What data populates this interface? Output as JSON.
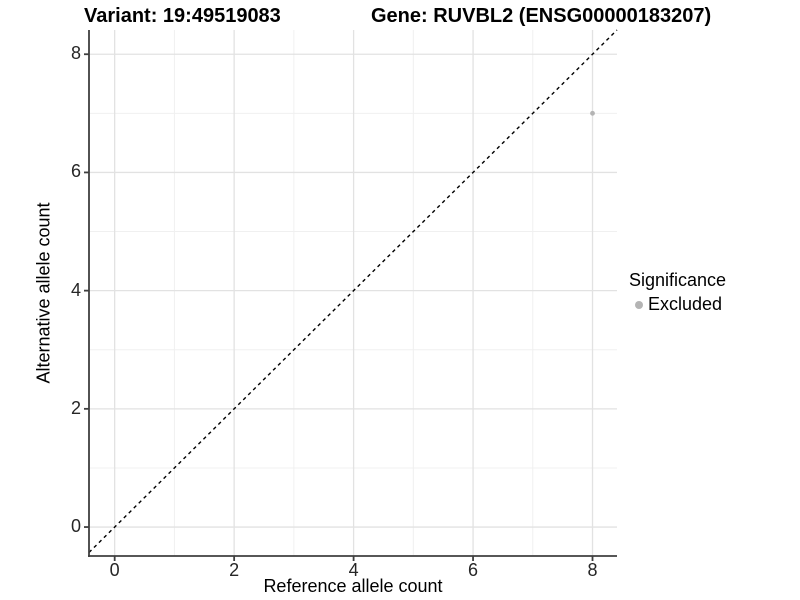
{
  "chart_data": {
    "type": "scatter",
    "title_left": "Variant: 19:49519083",
    "title_right": "Gene: RUVBL2 (ENSG00000183207)",
    "xlabel": "Reference allele count",
    "ylabel": "Alternative allele count",
    "xlim": [
      -0.43,
      8.41
    ],
    "ylim": [
      -0.49,
      8.41
    ],
    "x_ticks": [
      0,
      2,
      4,
      6,
      8
    ],
    "y_ticks": [
      0,
      2,
      4,
      6,
      8
    ],
    "x_minor_ticks": [
      1,
      3,
      5,
      7
    ],
    "y_minor_ticks": [
      1,
      3,
      5,
      7
    ],
    "grid": "major-and-minor",
    "points": [
      {
        "x": 8,
        "y": 7,
        "significance": "Excluded"
      }
    ],
    "identity_line": {
      "slope": 1,
      "intercept": 0,
      "style": "dashed",
      "color": "#000000"
    },
    "legend": {
      "title": "Significance",
      "position": "right",
      "items": [
        {
          "label": "Excluded",
          "color": "#b4b4b4"
        }
      ]
    },
    "colors": {
      "background": "#ffffff",
      "point": "#b4b4b4",
      "grid_major": "#e2e2e2",
      "grid_minor": "#f0f0f0",
      "axis_line": "#3f3f3f",
      "tick_text": "#262626",
      "dashed_line": "#000000"
    }
  }
}
